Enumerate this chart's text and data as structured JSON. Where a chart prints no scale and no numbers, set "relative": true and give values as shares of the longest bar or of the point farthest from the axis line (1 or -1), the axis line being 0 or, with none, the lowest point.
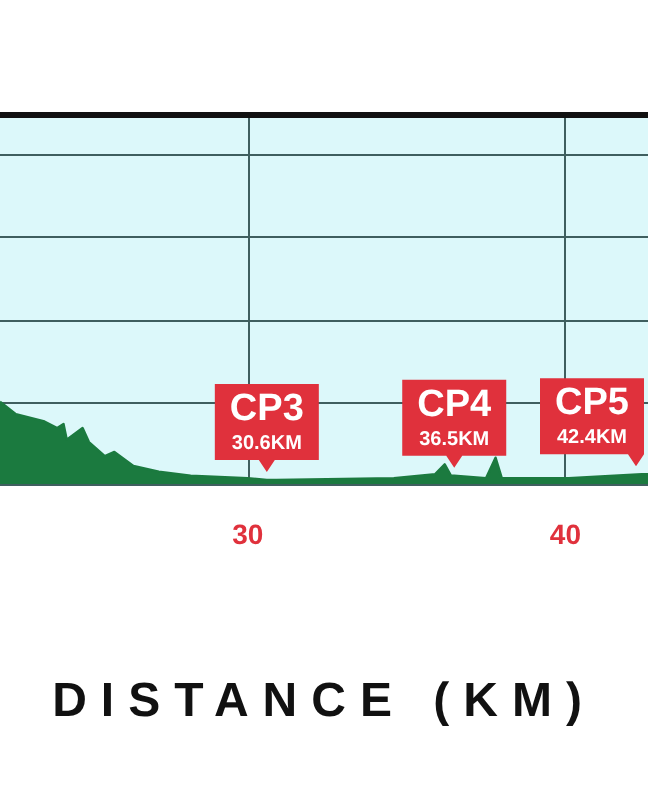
{
  "chart_data": {
    "type": "area",
    "relative": true,
    "xlabel": "DISTANCE (KM)",
    "x": [
      22.2,
      22.7,
      23.6,
      24.0,
      24.2,
      24.3,
      24.8,
      25.0,
      25.5,
      25.8,
      26.4,
      27.2,
      28.2,
      30.0,
      30.6,
      30.9,
      34.6,
      35.9,
      36.2,
      36.4,
      36.5,
      37.5,
      37.8,
      38.0,
      40.1,
      42.4,
      42.6
    ],
    "series": [
      {
        "color": "#1b7a3f",
        "values": [
          1.0,
          0.85,
          0.76,
          0.68,
          0.73,
          0.54,
          0.68,
          0.51,
          0.34,
          0.39,
          0.22,
          0.15,
          0.1,
          0.07,
          0.05,
          0.05,
          0.07,
          0.12,
          0.24,
          0.1,
          0.1,
          0.07,
          0.32,
          0.07,
          0.07,
          0.12,
          0.12
        ]
      }
    ],
    "xlim": [
      22.2,
      42.6
    ],
    "xticks": [
      30,
      40
    ],
    "grid": true,
    "annotations": [
      {
        "text": "CP3\n30.6KM",
        "x": 30.6,
        "y": 0.05
      },
      {
        "text": "CP4\n36.5KM",
        "x": 36.5,
        "y": 0.1
      },
      {
        "text": "CP5\n42.4KM",
        "x": 42.4,
        "y": 0.12
      }
    ]
  }
}
